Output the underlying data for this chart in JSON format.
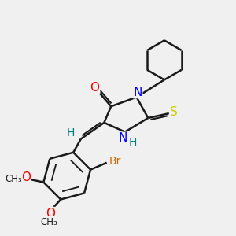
{
  "bg_color": "#f0f0f0",
  "line_color": "#1a1a1a",
  "bond_width": 1.8,
  "atom_labels": {
    "O": {
      "color": "#ff0000",
      "fontsize": 11
    },
    "N": {
      "color": "#0000ff",
      "fontsize": 11
    },
    "S": {
      "color": "#cccc00",
      "fontsize": 11
    },
    "Br": {
      "color": "#cc6600",
      "fontsize": 10
    },
    "H": {
      "color": "#008080",
      "fontsize": 10
    },
    "methoxy": {
      "color": "#ff0000",
      "fontsize": 10
    }
  },
  "figsize": [
    3.0,
    3.0
  ],
  "dpi": 100,
  "xlim": [
    0,
    10
  ],
  "ylim": [
    0,
    10
  ]
}
